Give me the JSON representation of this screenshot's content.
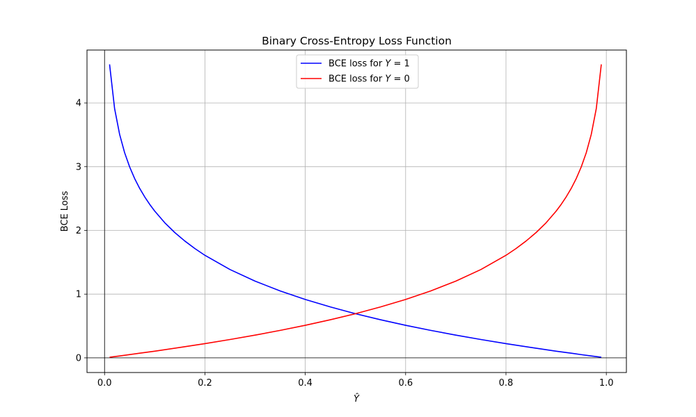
{
  "chart_data": {
    "type": "line",
    "title": "Binary Cross-Entropy Loss Function",
    "xlabel": "Ŷ",
    "ylabel": "BCE Loss",
    "xlim": [
      -0.035,
      1.04
    ],
    "ylim": [
      -0.23,
      4.83
    ],
    "x_ticks": [
      0.0,
      0.2,
      0.4,
      0.6,
      0.8,
      1.0
    ],
    "x_tick_labels": [
      "0.0",
      "0.2",
      "0.4",
      "0.6",
      "0.8",
      "1.0"
    ],
    "y_ticks": [
      0,
      1,
      2,
      3,
      4
    ],
    "y_tick_labels": [
      "0",
      "1",
      "2",
      "3",
      "4"
    ],
    "grid": true,
    "reference_lines": {
      "x": 0,
      "y": 0
    },
    "legend_position": "top-center",
    "series": [
      {
        "name": "BCE loss for Y = 1",
        "legend_prefix": "BCE loss for ",
        "legend_var": "Y",
        "legend_suffix": " = 1",
        "color": "#0000ff",
        "x": [
          0.01,
          0.02,
          0.03,
          0.04,
          0.05,
          0.06,
          0.07,
          0.08,
          0.09,
          0.1,
          0.12,
          0.14,
          0.16,
          0.18,
          0.2,
          0.25,
          0.3,
          0.35,
          0.4,
          0.45,
          0.5,
          0.55,
          0.6,
          0.65,
          0.7,
          0.75,
          0.8,
          0.85,
          0.9,
          0.93,
          0.95,
          0.97,
          0.98,
          0.99
        ],
        "y": [
          4.605,
          3.912,
          3.507,
          3.219,
          2.996,
          2.813,
          2.659,
          2.526,
          2.408,
          2.303,
          2.12,
          1.966,
          1.833,
          1.715,
          1.609,
          1.386,
          1.204,
          1.05,
          0.916,
          0.799,
          0.693,
          0.598,
          0.511,
          0.431,
          0.357,
          0.288,
          0.223,
          0.163,
          0.105,
          0.073,
          0.051,
          0.03,
          0.02,
          0.01
        ]
      },
      {
        "name": "BCE loss for Y = 0",
        "legend_prefix": "BCE loss for ",
        "legend_var": "Y",
        "legend_suffix": " = 0",
        "color": "#ff0000",
        "x": [
          0.01,
          0.02,
          0.03,
          0.05,
          0.07,
          0.1,
          0.15,
          0.2,
          0.25,
          0.3,
          0.35,
          0.4,
          0.45,
          0.5,
          0.55,
          0.6,
          0.65,
          0.7,
          0.75,
          0.8,
          0.82,
          0.84,
          0.86,
          0.88,
          0.9,
          0.91,
          0.92,
          0.93,
          0.94,
          0.95,
          0.96,
          0.97,
          0.98,
          0.99
        ],
        "y": [
          0.01,
          0.02,
          0.03,
          0.051,
          0.073,
          0.105,
          0.163,
          0.223,
          0.288,
          0.357,
          0.431,
          0.511,
          0.598,
          0.693,
          0.799,
          0.916,
          1.05,
          1.204,
          1.386,
          1.609,
          1.715,
          1.833,
          1.966,
          2.12,
          2.303,
          2.408,
          2.526,
          2.659,
          2.813,
          2.996,
          3.219,
          3.507,
          3.912,
          4.605
        ]
      }
    ]
  }
}
